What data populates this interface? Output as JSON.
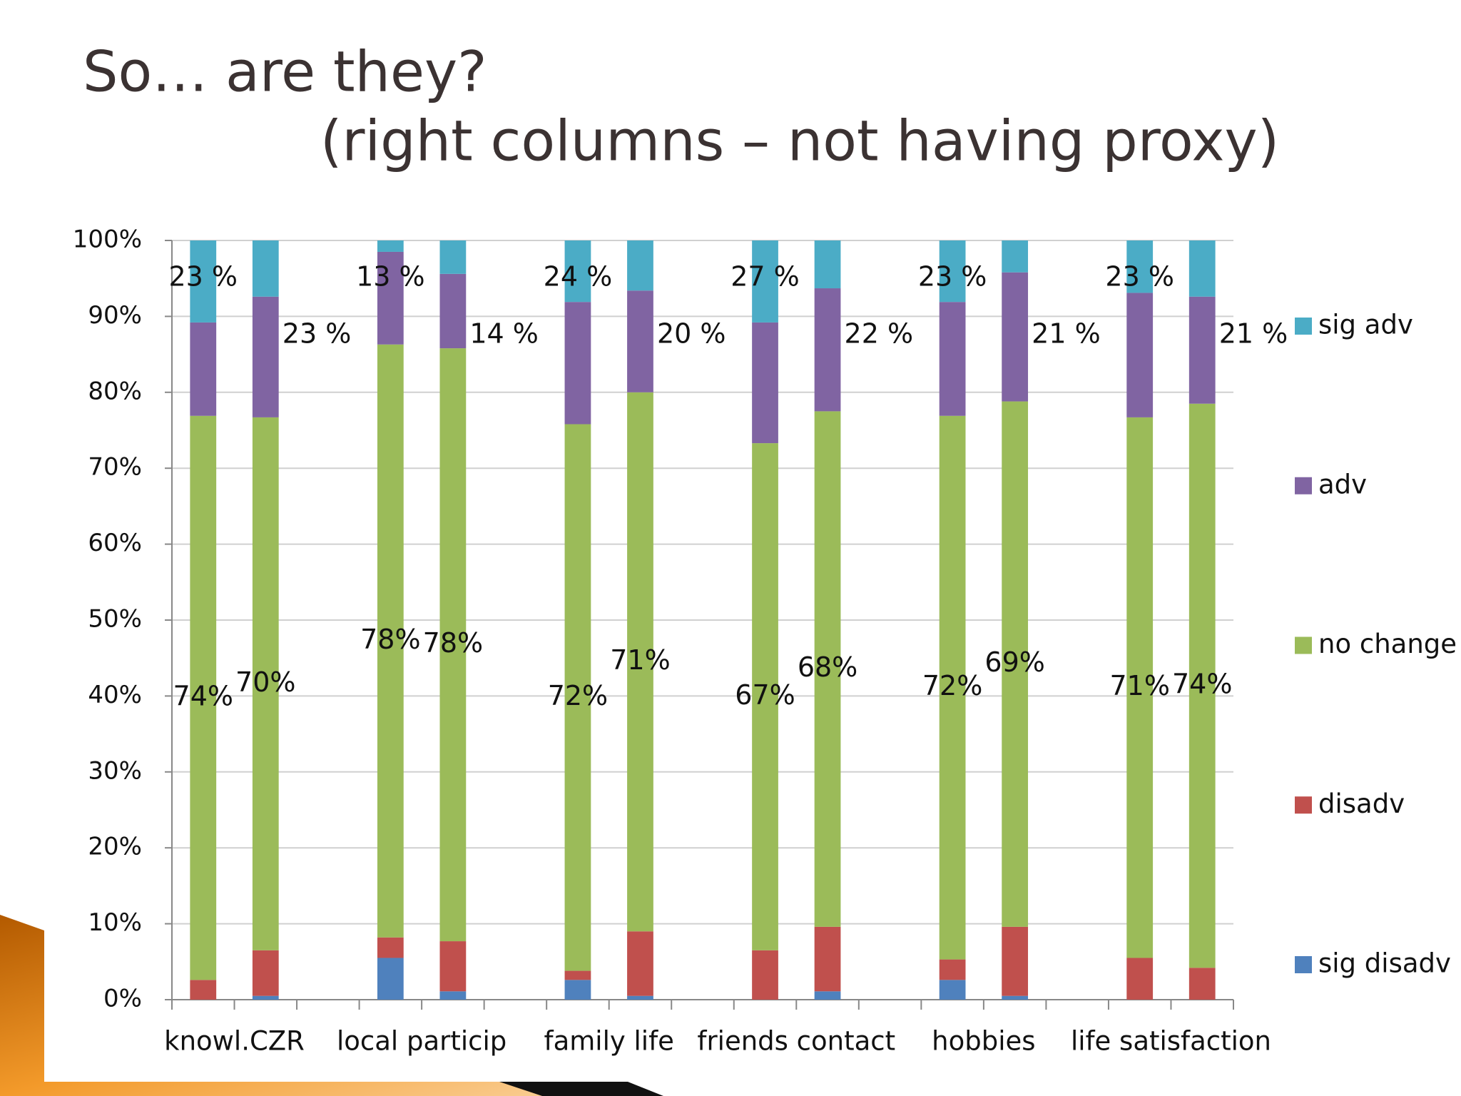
{
  "chart_data": {
    "type": "stacked_bar",
    "title": "So… are they?",
    "subtitle": "(right columns – not having proxy)",
    "categories": [
      "knowl.CZR",
      null,
      "local particip",
      null,
      "family life",
      null,
      "friends contact",
      null,
      "hobbies",
      null,
      "life satisfaction",
      null
    ],
    "series": [
      {
        "name": "sig disadv",
        "color": "#4f81bd",
        "values": [
          0,
          0.5,
          5.5,
          1.1,
          2.6,
          0.5,
          0,
          1.1,
          2.6,
          0.5,
          0,
          0
        ]
      },
      {
        "name": "disadv",
        "color": "#c0504d",
        "values": [
          2.6,
          6.0,
          2.7,
          6.6,
          1.2,
          8.5,
          6.5,
          8.5,
          2.7,
          9.1,
          5.5,
          4.2
        ]
      },
      {
        "name": "no change",
        "color": "#9bbb59",
        "values": [
          74.3,
          70.2,
          78.1,
          78.1,
          72.0,
          71.0,
          66.8,
          67.9,
          71.6,
          69.2,
          71.2,
          74.3
        ],
        "value_labels": [
          "74%",
          "70%",
          "78%",
          "78%",
          "72%",
          "71%",
          "67%",
          "68%",
          "72%",
          "69%",
          "71%",
          "74%"
        ]
      },
      {
        "name": "adv",
        "color": "#8064a2",
        "values": [
          12.3,
          15.9,
          12.2,
          9.8,
          16.1,
          13.4,
          15.9,
          16.2,
          15.0,
          17.0,
          16.4,
          14.1
        ]
      },
      {
        "name": "sig adv",
        "color": "#4bacc6",
        "values": [
          10.8,
          7.4,
          1.5,
          4.4,
          8.1,
          6.6,
          10.8,
          6.3,
          8.1,
          4.2,
          6.9,
          7.4
        ]
      }
    ],
    "annotations": [
      "23 %",
      "23 %",
      "13 %",
      "14 %",
      "24 %",
      "20 %",
      "27 %",
      "22 %",
      "23 %",
      "21 %",
      "23 %",
      "21 %"
    ],
    "ylim": [
      0,
      100
    ],
    "yticks": [
      {
        "value": 0,
        "label": "0%"
      },
      {
        "value": 10,
        "label": "10%"
      },
      {
        "value": 20,
        "label": "20%"
      },
      {
        "value": 30,
        "label": "30%"
      },
      {
        "value": 40,
        "label": "40%"
      },
      {
        "value": 50,
        "label": "50%"
      },
      {
        "value": 60,
        "label": "60%"
      },
      {
        "value": 70,
        "label": "70%"
      },
      {
        "value": 80,
        "label": "80%"
      },
      {
        "value": 90,
        "label": "90%"
      },
      {
        "value": 100,
        "label": "100%"
      }
    ],
    "grid": true,
    "legend": "right"
  }
}
